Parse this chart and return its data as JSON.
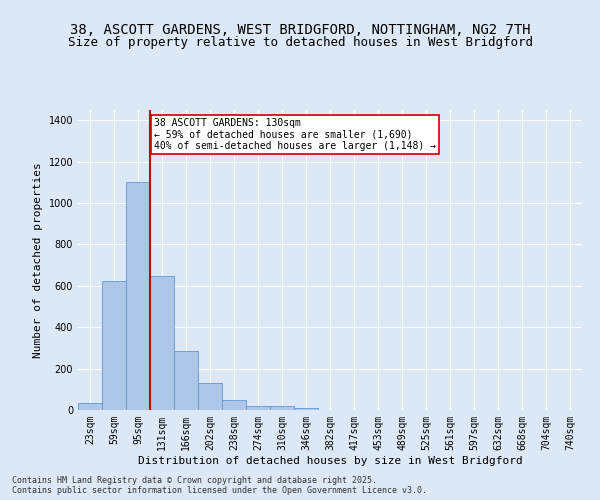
{
  "title_line1": "38, ASCOTT GARDENS, WEST BRIDGFORD, NOTTINGHAM, NG2 7TH",
  "title_line2": "Size of property relative to detached houses in West Bridgford",
  "xlabel": "Distribution of detached houses by size in West Bridgford",
  "ylabel": "Number of detached properties",
  "categories": [
    "23sqm",
    "59sqm",
    "95sqm",
    "131sqm",
    "166sqm",
    "202sqm",
    "238sqm",
    "274sqm",
    "310sqm",
    "346sqm",
    "382sqm",
    "417sqm",
    "453sqm",
    "489sqm",
    "525sqm",
    "561sqm",
    "597sqm",
    "632sqm",
    "668sqm",
    "704sqm",
    "740sqm"
  ],
  "values": [
    35,
    625,
    1100,
    648,
    285,
    130,
    50,
    20,
    18,
    12,
    0,
    0,
    0,
    0,
    0,
    0,
    0,
    0,
    0,
    0,
    0
  ],
  "bar_color": "#aec6e8",
  "bar_edge_color": "#5b9bd5",
  "vline_color": "#cc0000",
  "vline_position": 2.5,
  "annotation_text": "38 ASCOTT GARDENS: 130sqm\n← 59% of detached houses are smaller (1,690)\n40% of semi-detached houses are larger (1,148) →",
  "annotation_box_color": "#cc0000",
  "annotation_fill": "#ffffff",
  "ylim": [
    0,
    1450
  ],
  "yticks": [
    0,
    200,
    400,
    600,
    800,
    1000,
    1200,
    1400
  ],
  "background_color": "#dce8f5",
  "plot_bg_color": "#dce8f5",
  "footer_line1": "Contains HM Land Registry data © Crown copyright and database right 2025.",
  "footer_line2": "Contains public sector information licensed under the Open Government Licence v3.0.",
  "title_fontsize": 10,
  "subtitle_fontsize": 9,
  "tick_fontsize": 7,
  "ylabel_fontsize": 8,
  "xlabel_fontsize": 8,
  "annotation_fontsize": 7,
  "footer_fontsize": 6
}
